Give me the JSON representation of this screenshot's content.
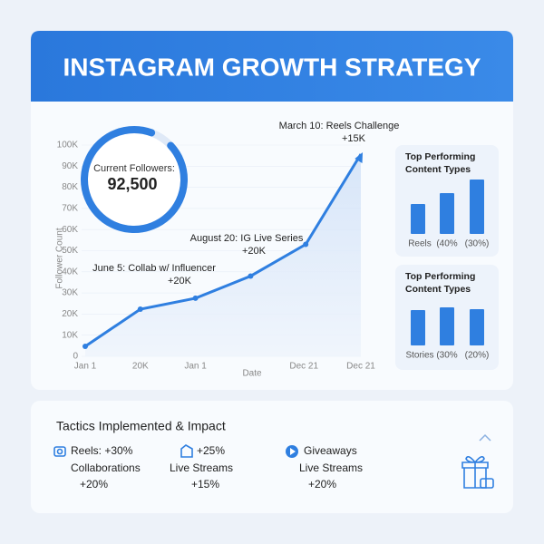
{
  "header": {
    "title": "INSTAGRAM GROWTH STRATEGY"
  },
  "chart_data": [
    {
      "type": "line",
      "x_label": "Date",
      "y_label": "Follower Count",
      "categories": [
        "Jan 1",
        "20K",
        "Jan 1",
        null,
        "Dec 21",
        "Dec 21"
      ],
      "values": [
        4700,
        22300,
        27500,
        38000,
        53000,
        95700
      ],
      "color": "#2f7fe0",
      "ylim": [
        0,
        100000
      ],
      "yticks": [
        0,
        {
          "value": 10000,
          "label": "10K"
        },
        {
          "value": 20000,
          "label": "20K"
        },
        {
          "value": 30000,
          "label": "30K"
        },
        {
          "value": 40000,
          "label": "40K"
        },
        {
          "value": 50000,
          "label": "50K"
        },
        {
          "value": 60000,
          "label": "60K"
        },
        {
          "value": 70000,
          "label": "70K"
        },
        {
          "value": 80000,
          "label": "80K"
        },
        {
          "value": 90000,
          "label": "90K"
        },
        {
          "value": 100000,
          "label": "100K"
        }
      ],
      "annotations": [
        {
          "index": 5,
          "title": "March 10: Reels Challenge",
          "note": "+15K"
        },
        {
          "index": 3,
          "title": "August 20: IG Live Series",
          "note": "+20K"
        },
        {
          "index": 2,
          "title": "June 5: Collab w/ Influencer",
          "note": "+20K"
        }
      ]
    },
    {
      "type": "gauge",
      "label": "Current Followers:",
      "value": 92500,
      "value_label": "92,500",
      "color": "#2f7fe0"
    },
    {
      "type": "bar",
      "title": [
        "Top Performing",
        "Content Types"
      ],
      "categories": [
        "Reels",
        "(40%",
        "(30%)"
      ],
      "values": [
        33,
        45,
        60
      ],
      "color": "#2f7fe0"
    },
    {
      "type": "bar",
      "title": [
        "Top Performing",
        "Content Types"
      ],
      "categories": [
        "Stories",
        "(30%",
        "(20%)"
      ],
      "values": [
        39,
        42,
        40
      ],
      "color": "#2f7fe0"
    }
  ],
  "tactics": {
    "title": "Tactics Implemented & Impact",
    "items": [
      [
        "Reels: +30%",
        "Collaborations",
        "+20%"
      ],
      [
        "+25%",
        "Live Streams",
        "+15%"
      ],
      [
        "Giveaways",
        "Live Streams",
        "+20%"
      ]
    ]
  }
}
